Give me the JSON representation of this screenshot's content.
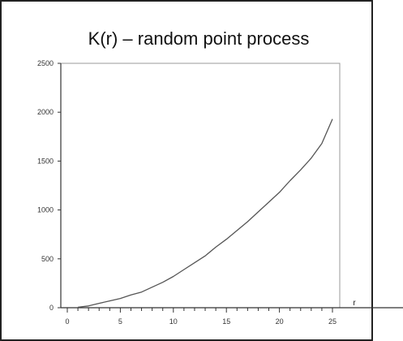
{
  "chart_data": {
    "type": "line",
    "title": "K(r) – random point process",
    "subtitle": "",
    "xlabel": "r",
    "ylabel": "",
    "xlim": [
      0,
      25
    ],
    "ylim": [
      0,
      2500
    ],
    "x_ticks": [
      0,
      5,
      10,
      15,
      20,
      25
    ],
    "x_tick_labels": [
      "0",
      "5",
      "10",
      "15",
      "20",
      "25"
    ],
    "y_ticks": [
      0,
      500,
      1000,
      1500,
      2000,
      2500
    ],
    "y_tick_labels": [
      "0",
      "500",
      "1000",
      "1500",
      "2000",
      "2500"
    ],
    "minor_x_ticks": [
      1,
      2,
      3,
      4,
      6,
      7,
      8,
      9,
      11,
      12,
      13,
      14,
      16,
      17,
      18,
      19,
      21,
      22,
      23,
      24
    ],
    "grid": false,
    "legend": "none",
    "series": [
      {
        "color": "#555555",
        "x": [
          1,
          2,
          3,
          4,
          5,
          6,
          7,
          8,
          9,
          10,
          11,
          12,
          13,
          14,
          15,
          16,
          17,
          18,
          19,
          20,
          21,
          22,
          23,
          24,
          25
        ],
        "y": [
          5,
          18,
          45,
          70,
          95,
          130,
          160,
          210,
          260,
          320,
          390,
          460,
          530,
          620,
          700,
          790,
          880,
          980,
          1080,
          1180,
          1300,
          1410,
          1530,
          1680,
          1930
        ]
      }
    ]
  },
  "colors": {
    "frame": "#222222",
    "axis": "#333333",
    "plot_border": "#999999",
    "line": "#555555",
    "background": "#ffffff"
  }
}
